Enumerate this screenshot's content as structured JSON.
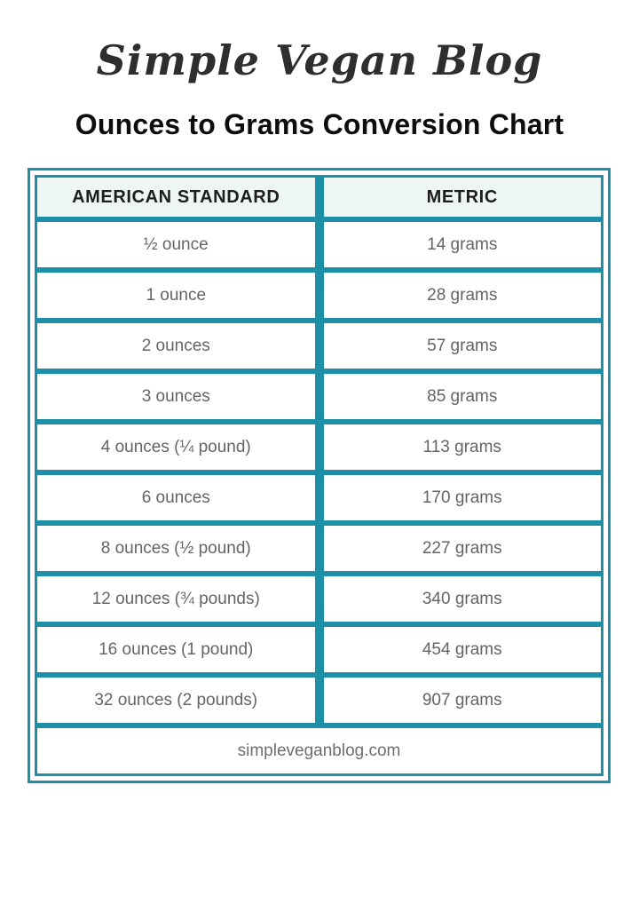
{
  "logo": {
    "text": "Simple Vegan Blog"
  },
  "title": "Ounces to Grams Conversion Chart",
  "table": {
    "border_color": "#1d8fa6",
    "header_bg": "#edf6f3",
    "headers": [
      "AMERICAN STANDARD",
      "METRIC"
    ],
    "rows": [
      [
        "½ ounce",
        "14 grams"
      ],
      [
        "1 ounce",
        "28 grams"
      ],
      [
        "2 ounces",
        "57 grams"
      ],
      [
        "3 ounces",
        "85 grams"
      ],
      [
        "4 ounces (¼ pound)",
        "113 grams"
      ],
      [
        "6 ounces",
        "170 grams"
      ],
      [
        "8 ounces (½ pound)",
        "227 grams"
      ],
      [
        "12 ounces (¾ pounds)",
        "340 grams"
      ],
      [
        "16 ounces (1 pound)",
        "454 grams"
      ],
      [
        "32 ounces (2 pounds)",
        "907 grams"
      ]
    ],
    "footer": "simpleveganblog.com"
  }
}
